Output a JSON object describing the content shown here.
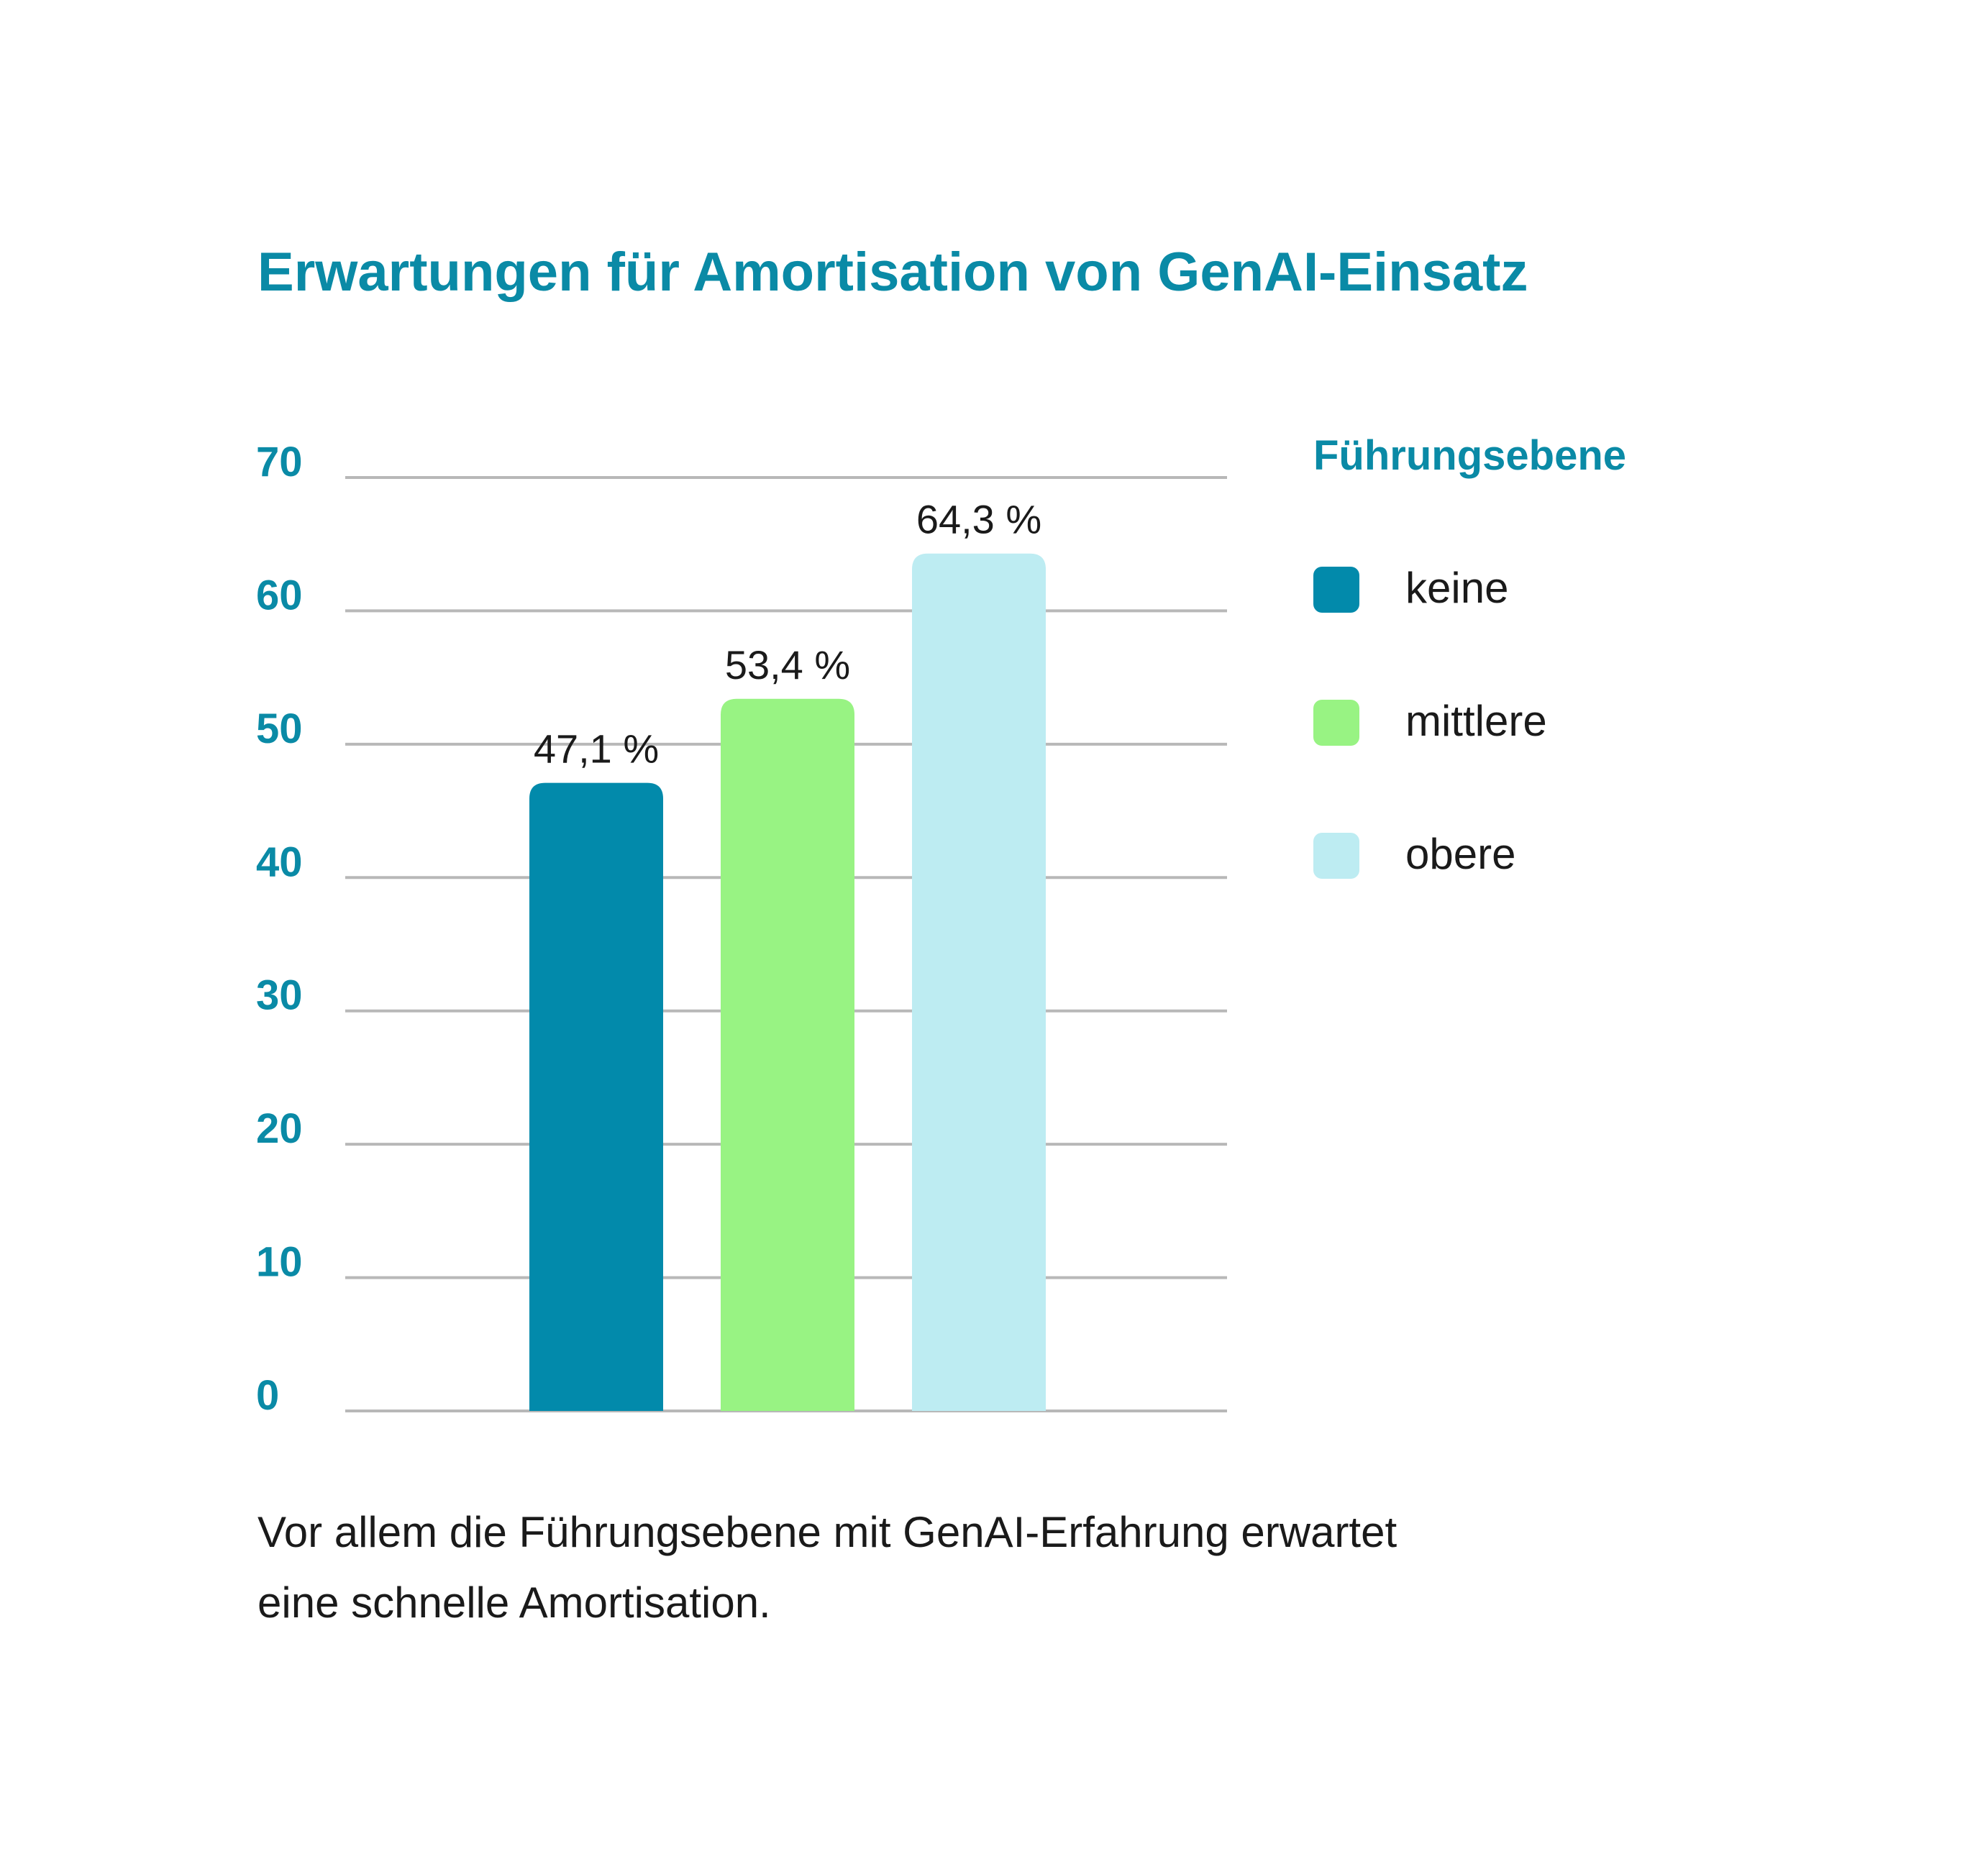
{
  "chart_data": {
    "type": "bar",
    "title": "Erwartungen für Amortisation von GenAI-Einsatz",
    "categories": [
      "keine",
      "mittlere",
      "obere"
    ],
    "values": [
      47.1,
      53.4,
      64.3
    ],
    "value_labels": [
      "47,1 %",
      "53,4 %",
      "64,3 %"
    ],
    "colors": [
      "#028aab",
      "#98f383",
      "#bdecf2"
    ],
    "ylim": [
      0,
      70
    ],
    "yticks": [
      0,
      10,
      20,
      30,
      40,
      50,
      60,
      70
    ],
    "grid": true,
    "legend": {
      "title": "Führungsebene",
      "placement": "right",
      "items": [
        "keine",
        "mittlere",
        "obere"
      ]
    },
    "xlabel": "",
    "ylabel": ""
  },
  "caption": "Vor allem die Führungsebene mit GenAI-Erfahrung erwartet eine schnelle Amortisation."
}
